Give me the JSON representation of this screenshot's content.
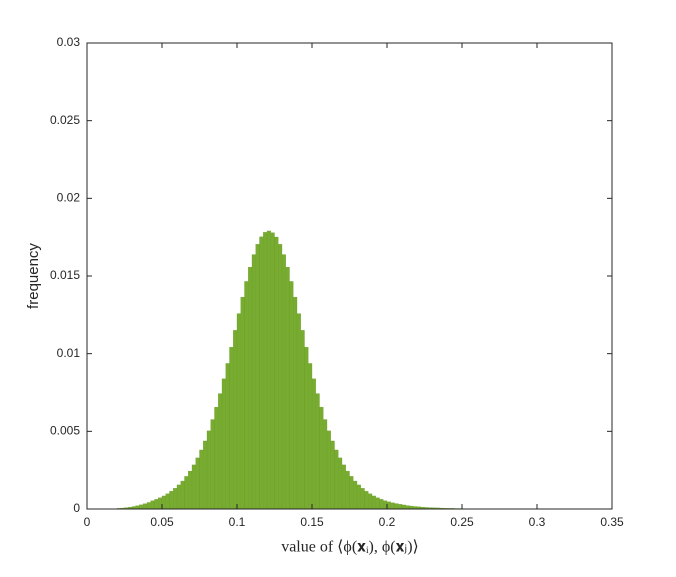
{
  "chart_data": {
    "type": "histogram",
    "xlabel": "value of ⟨ϕ(𝐱ᵢ), ϕ(𝐱ⱼ)⟩",
    "ylabel": "frequency",
    "color": "#77ac30",
    "bins": [
      0.02,
      0.0225,
      0.025,
      0.0275,
      0.03,
      0.0325,
      0.035,
      0.0375,
      0.04,
      0.0425,
      0.045,
      0.0475,
      0.05,
      0.0525,
      0.055,
      0.0575,
      0.06,
      0.0625,
      0.065,
      0.0675,
      0.07,
      0.0725,
      0.075,
      0.0775,
      0.08,
      0.0825,
      0.085,
      0.0875,
      0.09,
      0.0925,
      0.095,
      0.0975,
      0.1,
      0.1025,
      0.105,
      0.1075,
      0.11,
      0.1125,
      0.115,
      0.1175,
      0.12,
      0.1225,
      0.125,
      0.1275,
      0.13,
      0.1325,
      0.135,
      0.1375,
      0.14,
      0.1425,
      0.145,
      0.1475,
      0.15,
      0.1525,
      0.155,
      0.1575,
      0.16,
      0.1625,
      0.165,
      0.1675,
      0.17,
      0.1725,
      0.175,
      0.1775,
      0.18,
      0.1825,
      0.185,
      0.1875,
      0.19,
      0.1925,
      0.195,
      0.1975,
      0.2,
      0.2025,
      0.205,
      0.2075,
      0.21,
      0.2125,
      0.215,
      0.2175,
      0.22,
      0.2225,
      0.225,
      0.2275,
      0.23,
      0.2325,
      0.235,
      0.2375,
      0.24,
      0.2425,
      0.245,
      0.2475,
      0.25,
      0.2525,
      0.255,
      0.2575,
      0.26,
      0.2625,
      0.265,
      0.2675,
      0.27
    ],
    "values": [
      4e-05,
      6e-05,
      9e-05,
      0.00012,
      0.00016,
      0.00021,
      0.00027,
      0.00034,
      0.00042,
      0.00053,
      0.00062,
      0.00072,
      0.00084,
      0.00098,
      0.00114,
      0.00133,
      0.00155,
      0.0018,
      0.0021,
      0.00244,
      0.00284,
      0.00329,
      0.0038,
      0.00438,
      0.00503,
      0.00576,
      0.00656,
      0.00743,
      0.00838,
      0.00937,
      0.01042,
      0.0115,
      0.01258,
      0.01364,
      0.01465,
      0.01557,
      0.01638,
      0.01704,
      0.01752,
      0.01781,
      0.0179,
      0.01779,
      0.01751,
      0.01704,
      0.01638,
      0.01557,
      0.01465,
      0.01364,
      0.01258,
      0.0115,
      0.01042,
      0.00937,
      0.00838,
      0.00743,
      0.00656,
      0.00576,
      0.00503,
      0.00438,
      0.0038,
      0.00329,
      0.00284,
      0.00244,
      0.0021,
      0.0018,
      0.00155,
      0.00133,
      0.00114,
      0.00098,
      0.00084,
      0.00072,
      0.00062,
      0.00053,
      0.00046,
      0.0004,
      0.00035,
      0.0003,
      0.00026,
      0.00022,
      0.00019,
      0.00016,
      0.00014,
      0.00012,
      0.0001,
      9e-05,
      8e-05,
      7e-05,
      6e-05,
      5e-05,
      4e-05,
      4e-05,
      3e-05,
      3e-05,
      2e-05,
      2e-05,
      2e-05,
      1e-05,
      1e-05,
      1e-05,
      1e-05,
      1e-05
    ],
    "xlim": [
      0,
      0.35
    ],
    "xticks": [
      0,
      0.05,
      0.1,
      0.15,
      0.2,
      0.25,
      0.3,
      0.35
    ],
    "ylim": [
      0,
      0.03
    ],
    "yticks": [
      0,
      0.005,
      0.01,
      0.015,
      0.02,
      0.025,
      0.03
    ]
  }
}
